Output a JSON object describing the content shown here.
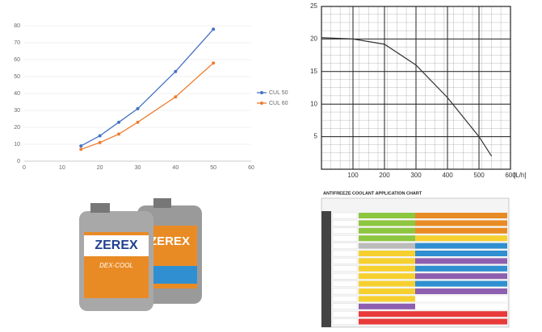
{
  "chart_data": [
    {
      "type": "line",
      "x": [
        15,
        20,
        25,
        30,
        40,
        50
      ],
      "series": [
        {
          "name": "CUL 50",
          "color": "#4472c4",
          "values": [
            9,
            15,
            23,
            31,
            53,
            78
          ]
        },
        {
          "name": "CUL 60",
          "color": "#ed7d31",
          "values": [
            7,
            11,
            16,
            23,
            38,
            58
          ]
        }
      ],
      "xlim": [
        0,
        60
      ],
      "xticks": [
        0,
        10,
        20,
        30,
        40,
        50,
        60
      ],
      "ylim": [
        0,
        80
      ],
      "yticks": [
        0,
        10,
        20,
        30,
        40,
        50,
        60,
        70,
        80
      ],
      "grid": true,
      "legend": "right"
    },
    {
      "type": "line",
      "x": [
        0,
        100,
        200,
        300,
        400,
        500,
        540
      ],
      "series": [
        {
          "color": "#333333",
          "values": [
            20.2,
            20,
            19.2,
            16,
            11,
            5,
            2
          ]
        }
      ],
      "xlim": [
        0,
        600
      ],
      "xticks": [
        100,
        200,
        300,
        400,
        500,
        600
      ],
      "ylim": [
        0,
        25
      ],
      "yticks": [
        5,
        10,
        15,
        20,
        25
      ],
      "xlabel": "[L/h]",
      "grid": true
    }
  ],
  "product": {
    "brand": "ZEREX",
    "variant": "DEX-COOL"
  },
  "application_chart": {
    "title": "ANTIFREEZE COOLANT APPLICATION CHART"
  }
}
